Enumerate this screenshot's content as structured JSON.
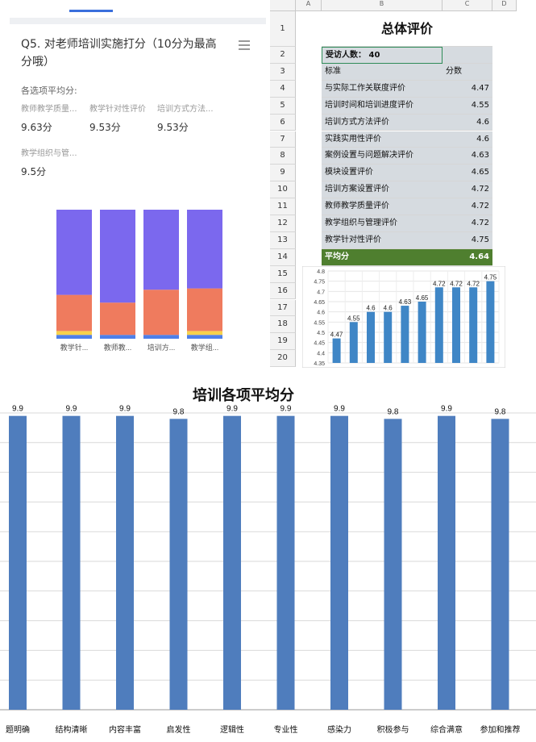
{
  "survey": {
    "question": "Q5. 对老师培训实施打分（10分为最高分哦）",
    "avg_title": "各选项平均分:",
    "items": [
      {
        "name": "教师教学质量...",
        "value": "9.63分"
      },
      {
        "name": "教学针对性评价",
        "value": "9.53分"
      },
      {
        "name": "培训方式方法...",
        "value": "9.53分"
      },
      {
        "name": "教学组织与管...",
        "value": "9.5分"
      }
    ],
    "colors": {
      "purple": "#7b68ee",
      "orange": "#ef7b5e",
      "yellow": "#f7d14c",
      "blue": "#4e7fe8"
    }
  },
  "sheet": {
    "col_headers": [
      "A",
      "B",
      "C",
      "D"
    ],
    "title": "总体评价",
    "respondents": "受访人数：  40",
    "header_label": "标准",
    "header_score": "分数",
    "rows": [
      {
        "label": "与实际工作关联度评价",
        "score": "4.47"
      },
      {
        "label": "培训时间和培训进度评价",
        "score": "4.55"
      },
      {
        "label": "培训方式方法评价",
        "score": "4.6"
      },
      {
        "label": "实践实用性评价",
        "score": "4.6"
      },
      {
        "label": "案例设置与问题解决评价",
        "score": "4.63"
      },
      {
        "label": "模块设置评价",
        "score": "4.65"
      },
      {
        "label": "培训方案设置评价",
        "score": "4.72"
      },
      {
        "label": "教师教学质量评价",
        "score": "4.72"
      },
      {
        "label": "教学组织与管理评价",
        "score": "4.72"
      },
      {
        "label": "教学针对性评价",
        "score": "4.75"
      }
    ],
    "avg_label": "平均分",
    "avg_value": "4.64",
    "row_numbers": [
      "1",
      "2",
      "3",
      "4",
      "5",
      "6",
      "7",
      "8",
      "9",
      "10",
      "11",
      "12",
      "13",
      "14",
      "15",
      "16",
      "17",
      "18",
      "19",
      "20"
    ],
    "colors": {
      "avg_bg": "#4f7f2f",
      "avg_text": "#ffffff",
      "select": "#2e8b57"
    }
  },
  "chart_data": [
    {
      "type": "bar",
      "stacked": true,
      "categories": [
        "教学针...",
        "教师教...",
        "培训方...",
        "教学组..."
      ],
      "series": [
        {
          "values": [
            0.03,
            0.03,
            0.03,
            0.03
          ],
          "color": "#4e7fe8"
        },
        {
          "values": [
            0.03,
            0.0,
            0.0,
            0.03
          ],
          "color": "#f7d14c"
        },
        {
          "values": [
            0.28,
            0.25,
            0.35,
            0.33
          ],
          "color": "#ef7b5e"
        },
        {
          "values": [
            0.66,
            0.72,
            0.62,
            0.61
          ],
          "color": "#7b68ee"
        }
      ],
      "ylim": [
        0,
        1
      ]
    },
    {
      "type": "bar",
      "categories": [
        "与实际工作关联度评价",
        "培训时间和培训进度评价",
        "培训方式方法评价",
        "实践实用性评价",
        "案例设置与问题解决评价",
        "模块设置评价",
        "培训方案设置评价",
        "教师教学质量评价",
        "教学组织与管理评价",
        "教学针对性评价"
      ],
      "values": [
        4.47,
        4.55,
        4.6,
        4.6,
        4.63,
        4.65,
        4.72,
        4.72,
        4.72,
        4.75
      ],
      "yticks": [
        "4.35",
        "4.4",
        "4.45",
        "4.5",
        "4.55",
        "4.6",
        "4.65",
        "4.7",
        "4.75",
        "4.8"
      ],
      "ylim": [
        4.35,
        4.8
      ],
      "grid": true,
      "color": "#3f86c6"
    },
    {
      "type": "bar",
      "title": "培训各项平均分",
      "categories": [
        "题明确",
        "结构清晰",
        "内容丰富",
        "启发性",
        "逻辑性",
        "专业性",
        "感染力",
        "积极参与",
        "综合满意",
        "参加和推荐"
      ],
      "values": [
        9.9,
        9.9,
        9.9,
        9.8,
        9.9,
        9.9,
        9.9,
        9.8,
        9.9,
        9.8
      ],
      "data_labels": [
        "9.9",
        "9.9",
        "9.9",
        "9.8",
        "9.9",
        "9.9",
        "9.9",
        "9.8",
        "9.9",
        "9.8"
      ],
      "ylim": [
        0,
        10
      ],
      "grid": true,
      "color": "#4f7dbd"
    }
  ]
}
